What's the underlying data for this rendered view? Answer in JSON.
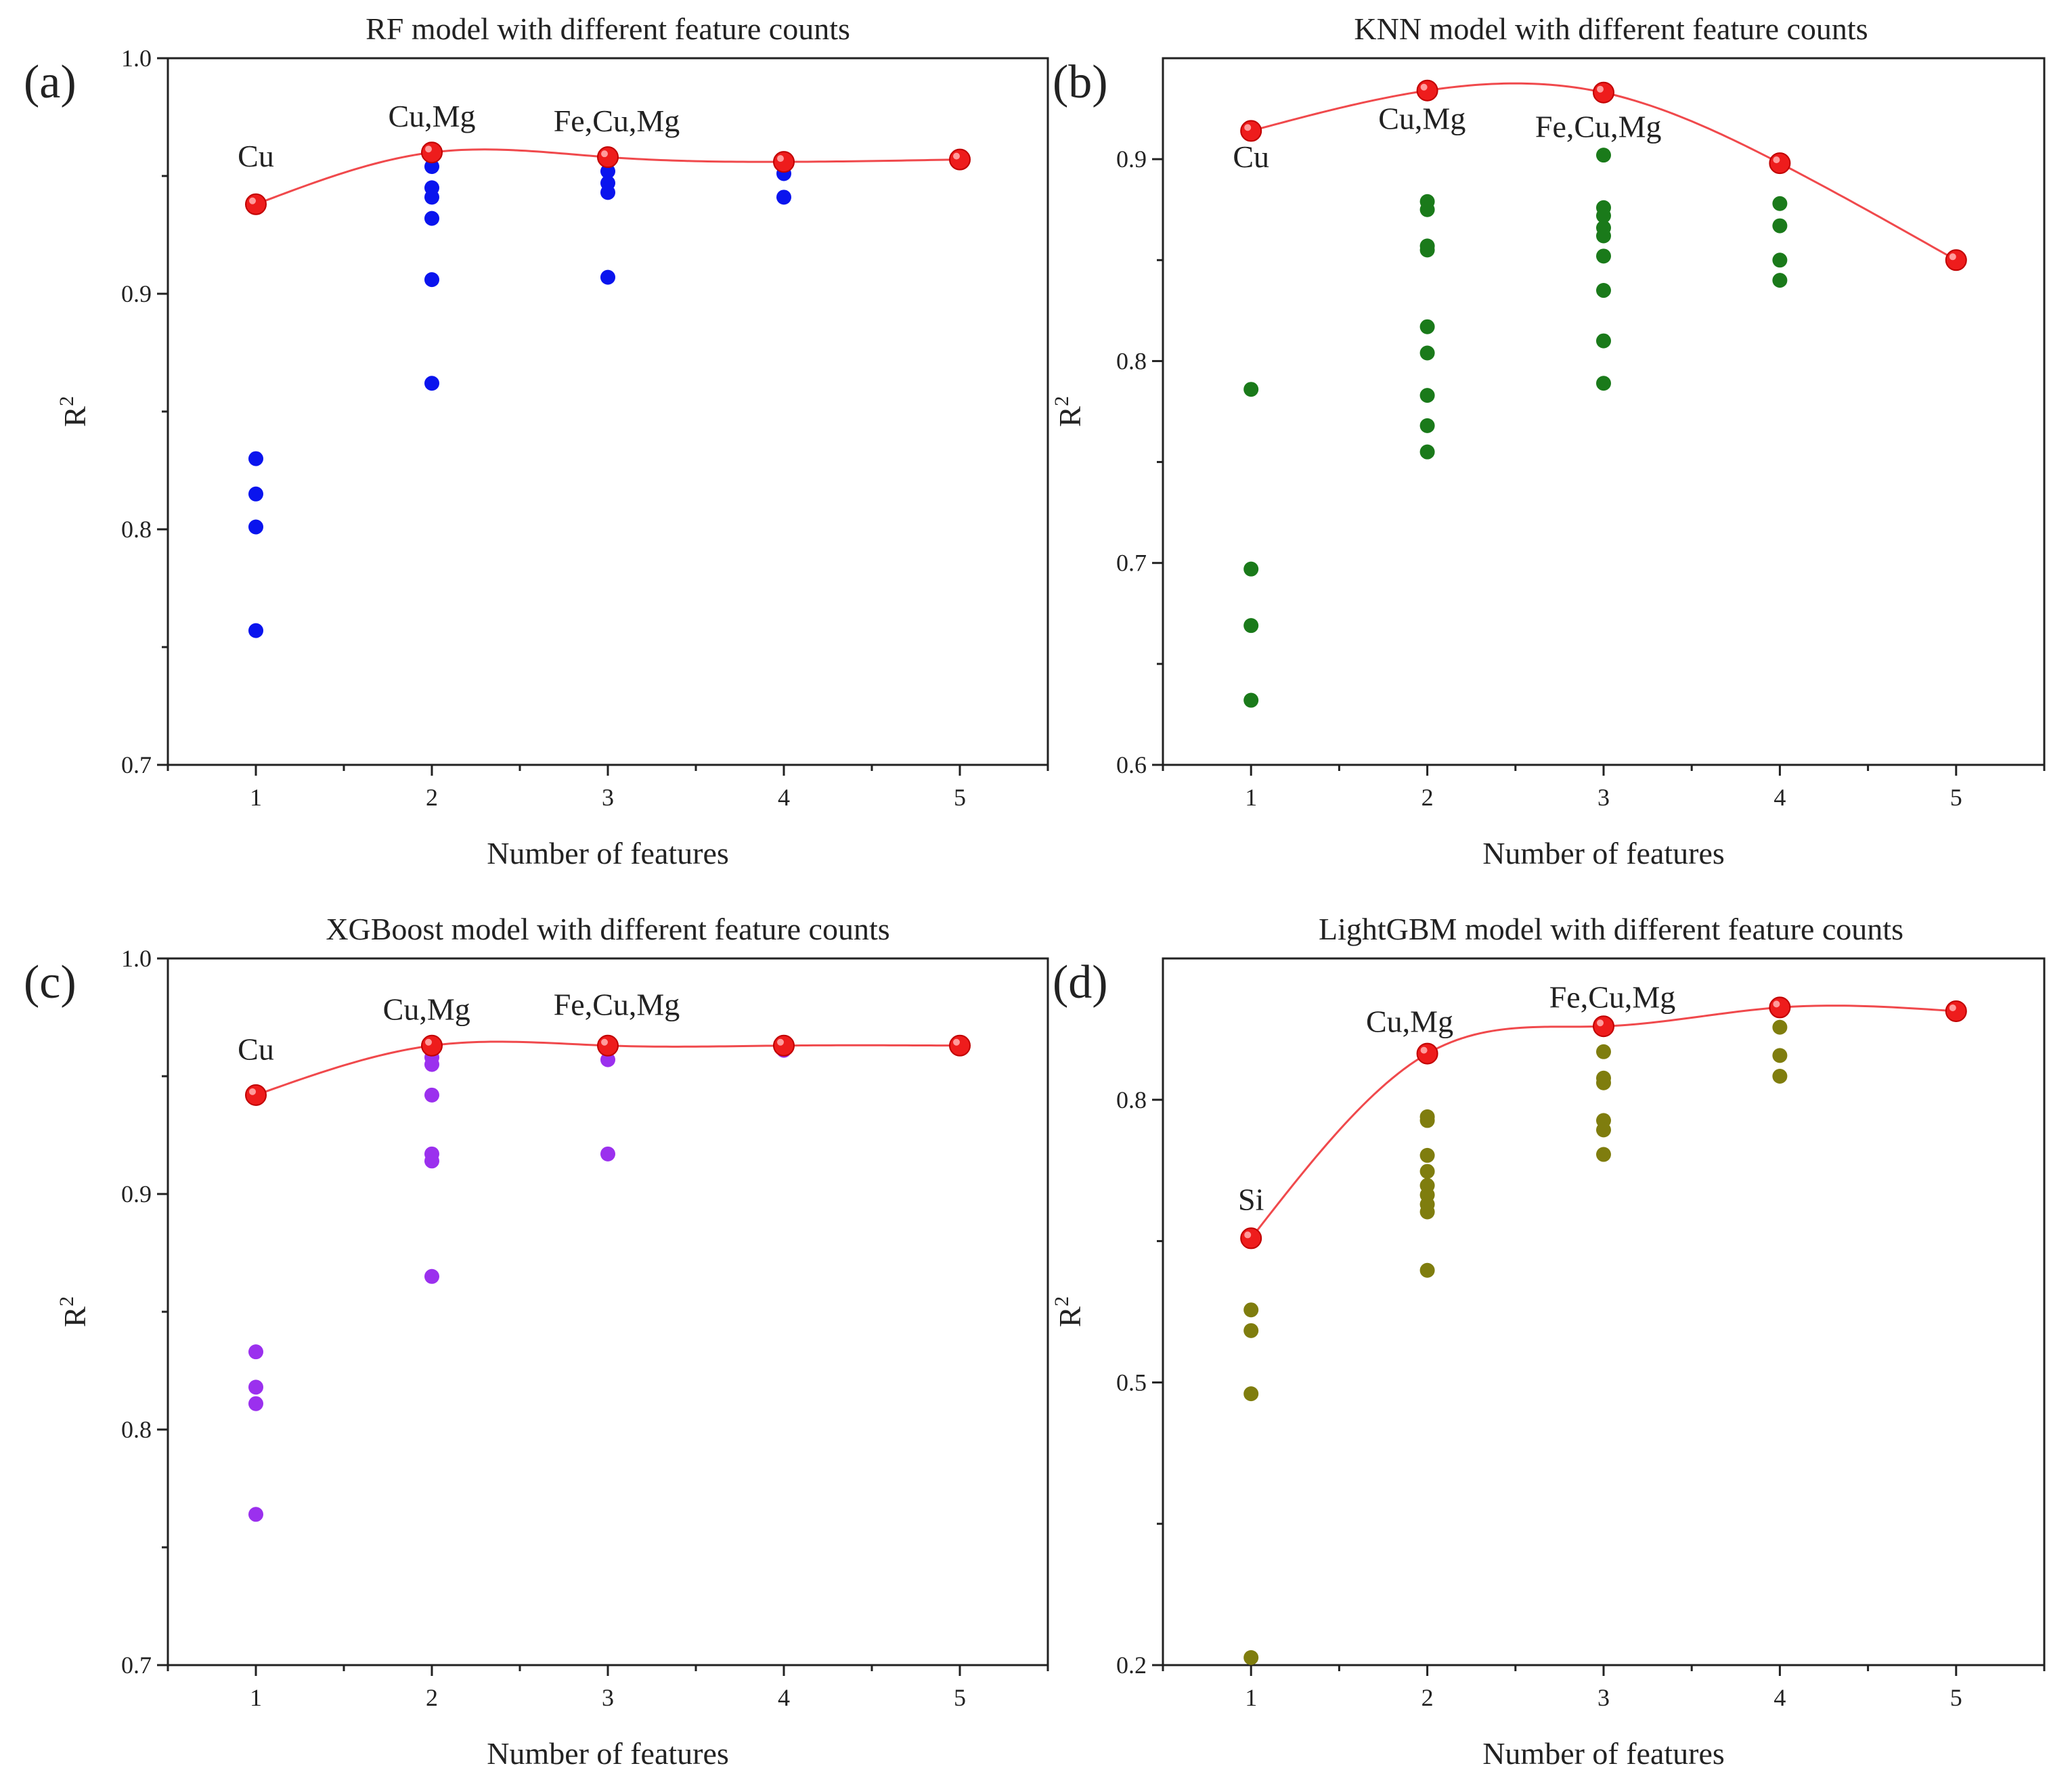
{
  "chart_data": [
    {
      "type": "scatter",
      "panel_label": "(a)",
      "title": "RF model with different feature counts",
      "xlabel": "Number of features",
      "ylabel": "R",
      "ylabel_sup": "2",
      "xlim": [
        0.5,
        5.5
      ],
      "ylim": [
        0.7,
        1.0
      ],
      "xticks": [
        1,
        2,
        3,
        4,
        5
      ],
      "yticks": [
        0.7,
        0.8,
        0.9,
        1.0
      ],
      "ytick_labels": [
        "0.7",
        "0.8",
        "0.9",
        "1.0"
      ],
      "point_color": "#0a14ee",
      "points": [
        {
          "x": 1,
          "y": 0.83
        },
        {
          "x": 1,
          "y": 0.815
        },
        {
          "x": 1,
          "y": 0.801
        },
        {
          "x": 1,
          "y": 0.757
        },
        {
          "x": 2,
          "y": 0.954
        },
        {
          "x": 2,
          "y": 0.945
        },
        {
          "x": 2,
          "y": 0.941
        },
        {
          "x": 2,
          "y": 0.932
        },
        {
          "x": 2,
          "y": 0.906
        },
        {
          "x": 2,
          "y": 0.862
        },
        {
          "x": 3,
          "y": 0.952
        },
        {
          "x": 3,
          "y": 0.947
        },
        {
          "x": 3,
          "y": 0.943
        },
        {
          "x": 3,
          "y": 0.907
        },
        {
          "x": 4,
          "y": 0.951
        },
        {
          "x": 4,
          "y": 0.941
        }
      ],
      "best_color": "#ee1c1c",
      "best_line_color": "#f0494c",
      "best": [
        {
          "x": 1,
          "y": 0.938
        },
        {
          "x": 2,
          "y": 0.96
        },
        {
          "x": 3,
          "y": 0.958
        },
        {
          "x": 4,
          "y": 0.956
        },
        {
          "x": 5,
          "y": 0.957
        }
      ],
      "annotations": [
        {
          "text": "Cu",
          "x": 1,
          "y": 0.954
        },
        {
          "text": "Cu,Mg",
          "x": 2,
          "y": 0.971
        },
        {
          "text": "Fe,Cu,Mg",
          "x": 3.05,
          "y": 0.969
        }
      ]
    },
    {
      "type": "scatter",
      "panel_label": "(b)",
      "title": "KNN model with different feature counts",
      "xlabel": "Number of features",
      "ylabel": "R",
      "ylabel_sup": "2",
      "xlim": [
        0.5,
        5.5
      ],
      "ylim": [
        0.6,
        0.95
      ],
      "xticks": [
        1,
        2,
        3,
        4,
        5
      ],
      "yticks": [
        0.6,
        0.7,
        0.8,
        0.9
      ],
      "ytick_labels": [
        "0.6",
        "0.7",
        "0.8",
        "0.9"
      ],
      "point_color": "#1a7a1a",
      "points": [
        {
          "x": 1,
          "y": 0.786
        },
        {
          "x": 1,
          "y": 0.697
        },
        {
          "x": 1,
          "y": 0.669
        },
        {
          "x": 1,
          "y": 0.632
        },
        {
          "x": 2,
          "y": 0.879
        },
        {
          "x": 2,
          "y": 0.875
        },
        {
          "x": 2,
          "y": 0.857
        },
        {
          "x": 2,
          "y": 0.855
        },
        {
          "x": 2,
          "y": 0.817
        },
        {
          "x": 2,
          "y": 0.804
        },
        {
          "x": 2,
          "y": 0.783
        },
        {
          "x": 2,
          "y": 0.768
        },
        {
          "x": 2,
          "y": 0.755
        },
        {
          "x": 3,
          "y": 0.902
        },
        {
          "x": 3,
          "y": 0.876
        },
        {
          "x": 3,
          "y": 0.872
        },
        {
          "x": 3,
          "y": 0.866
        },
        {
          "x": 3,
          "y": 0.862
        },
        {
          "x": 3,
          "y": 0.852
        },
        {
          "x": 3,
          "y": 0.835
        },
        {
          "x": 3,
          "y": 0.81
        },
        {
          "x": 3,
          "y": 0.789
        },
        {
          "x": 4,
          "y": 0.878
        },
        {
          "x": 4,
          "y": 0.867
        },
        {
          "x": 4,
          "y": 0.85
        },
        {
          "x": 4,
          "y": 0.84
        }
      ],
      "best_color": "#ee1c1c",
      "best_line_color": "#f0494c",
      "best": [
        {
          "x": 1,
          "y": 0.914
        },
        {
          "x": 2,
          "y": 0.934
        },
        {
          "x": 3,
          "y": 0.933
        },
        {
          "x": 4,
          "y": 0.898
        },
        {
          "x": 5,
          "y": 0.85
        }
      ],
      "annotations": [
        {
          "text": "Cu",
          "x": 1,
          "y": 0.896
        },
        {
          "text": "Cu,Mg",
          "x": 1.97,
          "y": 0.915
        },
        {
          "text": "Fe,Cu,Mg",
          "x": 2.97,
          "y": 0.911
        }
      ]
    },
    {
      "type": "scatter",
      "panel_label": "(c)",
      "title": "XGBoost model with different feature counts",
      "xlabel": "Number of features",
      "ylabel": "R",
      "ylabel_sup": "2",
      "xlim": [
        0.5,
        5.5
      ],
      "ylim": [
        0.7,
        1.0
      ],
      "xticks": [
        1,
        2,
        3,
        4,
        5
      ],
      "yticks": [
        0.7,
        0.8,
        0.9,
        1.0
      ],
      "ytick_labels": [
        "0.7",
        "0.8",
        "0.9",
        "1.0"
      ],
      "point_color": "#9b30ee",
      "points": [
        {
          "x": 1,
          "y": 0.833
        },
        {
          "x": 1,
          "y": 0.818
        },
        {
          "x": 1,
          "y": 0.811
        },
        {
          "x": 1,
          "y": 0.764
        },
        {
          "x": 2,
          "y": 0.958
        },
        {
          "x": 2,
          "y": 0.955
        },
        {
          "x": 2,
          "y": 0.942
        },
        {
          "x": 2,
          "y": 0.917
        },
        {
          "x": 2,
          "y": 0.914
        },
        {
          "x": 2,
          "y": 0.865
        },
        {
          "x": 3,
          "y": 0.957
        },
        {
          "x": 3,
          "y": 0.917
        },
        {
          "x": 4,
          "y": 0.961
        }
      ],
      "best_color": "#ee1c1c",
      "best_line_color": "#f0494c",
      "best": [
        {
          "x": 1,
          "y": 0.942
        },
        {
          "x": 2,
          "y": 0.963
        },
        {
          "x": 3,
          "y": 0.963
        },
        {
          "x": 4,
          "y": 0.963
        },
        {
          "x": 5,
          "y": 0.963
        }
      ],
      "annotations": [
        {
          "text": "Cu",
          "x": 1,
          "y": 0.957
        },
        {
          "text": "Cu,Mg",
          "x": 1.97,
          "y": 0.974
        },
        {
          "text": "Fe,Cu,Mg",
          "x": 3.05,
          "y": 0.976
        }
      ]
    },
    {
      "type": "scatter",
      "panel_label": "(d)",
      "title": "LightGBM model with different feature counts",
      "xlabel": "Number of features",
      "ylabel": "R",
      "ylabel_sup": "2",
      "xlim": [
        0.5,
        5.5
      ],
      "ylim": [
        0.2,
        0.95
      ],
      "xticks": [
        1,
        2,
        3,
        4,
        5
      ],
      "yticks": [
        0.2,
        0.5,
        0.8
      ],
      "ytick_labels": [
        "0.2",
        "0.5",
        "0.8"
      ],
      "point_color": "#7f7d0e",
      "points": [
        {
          "x": 1,
          "y": 0.577
        },
        {
          "x": 1,
          "y": 0.555
        },
        {
          "x": 1,
          "y": 0.488
        },
        {
          "x": 1,
          "y": 0.208
        },
        {
          "x": 2,
          "y": 0.782
        },
        {
          "x": 2,
          "y": 0.778
        },
        {
          "x": 2,
          "y": 0.741
        },
        {
          "x": 2,
          "y": 0.724
        },
        {
          "x": 2,
          "y": 0.709
        },
        {
          "x": 2,
          "y": 0.699
        },
        {
          "x": 2,
          "y": 0.689
        },
        {
          "x": 2,
          "y": 0.681
        },
        {
          "x": 2,
          "y": 0.619
        },
        {
          "x": 3,
          "y": 0.851
        },
        {
          "x": 3,
          "y": 0.823
        },
        {
          "x": 3,
          "y": 0.818
        },
        {
          "x": 3,
          "y": 0.778
        },
        {
          "x": 3,
          "y": 0.768
        },
        {
          "x": 3,
          "y": 0.742
        },
        {
          "x": 4,
          "y": 0.877
        },
        {
          "x": 4,
          "y": 0.847
        },
        {
          "x": 4,
          "y": 0.825
        }
      ],
      "best_color": "#ee1c1c",
      "best_line_color": "#f0494c",
      "best": [
        {
          "x": 1,
          "y": 0.653
        },
        {
          "x": 2,
          "y": 0.849
        },
        {
          "x": 3,
          "y": 0.878
        },
        {
          "x": 4,
          "y": 0.898
        },
        {
          "x": 5,
          "y": 0.894
        }
      ],
      "annotations": [
        {
          "text": "Si",
          "x": 1,
          "y": 0.683
        },
        {
          "text": "Cu,Mg",
          "x": 1.9,
          "y": 0.872
        },
        {
          "text": "Fe,Cu,Mg",
          "x": 3.05,
          "y": 0.898
        }
      ]
    }
  ]
}
